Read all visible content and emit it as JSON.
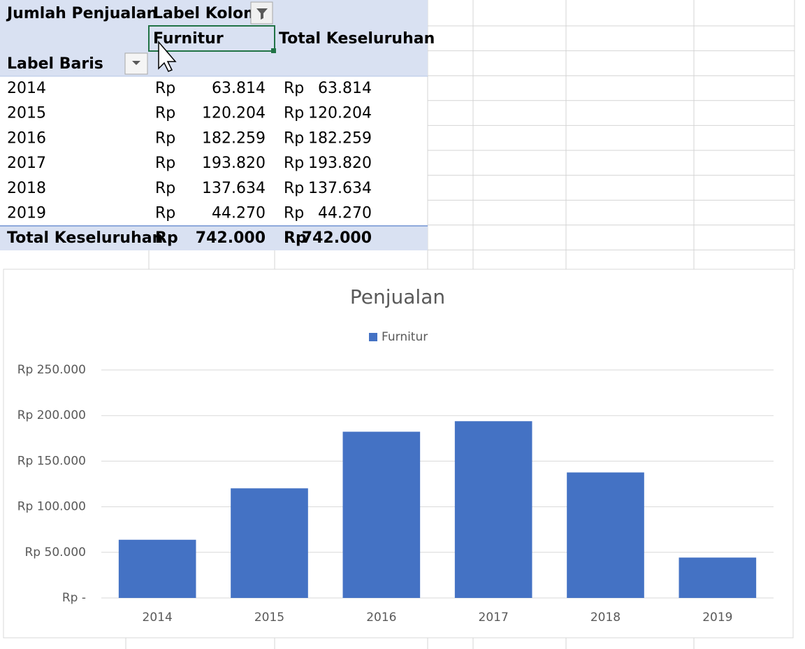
{
  "pivot": {
    "value_field": "Jumlah Penjualan",
    "column_label": "Label Kolom",
    "column_item": "Furnitur",
    "grand_total_header": "Total Keseluruhan",
    "row_label": "Label Baris",
    "rows": [
      [
        "2014",
        "Rp",
        "63.814",
        "Rp",
        "63.814"
      ],
      [
        "2015",
        "Rp",
        "120.204",
        "Rp",
        "120.204"
      ],
      [
        "2016",
        "Rp",
        "182.259",
        "Rp",
        "182.259"
      ],
      [
        "2017",
        "Rp",
        "193.820",
        "Rp",
        "193.820"
      ],
      [
        "2018",
        "Rp",
        "137.634",
        "Rp",
        "137.634"
      ],
      [
        "2019",
        "Rp",
        "44.270",
        "Rp",
        "44.270"
      ]
    ],
    "total_row": [
      "Total Keseluruhan",
      "Rp",
      "742.000",
      "Rp",
      "742.000"
    ]
  },
  "chart_data": {
    "type": "bar",
    "title": "Penjualan",
    "categories": [
      "2014",
      "2015",
      "2016",
      "2017",
      "2018",
      "2019"
    ],
    "series": [
      {
        "name": "Furnitur",
        "color": "#4472c4",
        "values": [
          63814,
          120204,
          182259,
          193820,
          137634,
          44270
        ]
      }
    ],
    "ylim": [
      0,
      250000
    ],
    "yticks": [
      {
        "value": 0,
        "label": "Rp -"
      },
      {
        "value": 50000,
        "label": "Rp 50.000"
      },
      {
        "value": 100000,
        "label": "Rp 100.000"
      },
      {
        "value": 150000,
        "label": "Rp 150.000"
      },
      {
        "value": 200000,
        "label": "Rp 200.000"
      },
      {
        "value": 250000,
        "label": "Rp 250.000"
      }
    ],
    "grid": true,
    "legend": "top"
  }
}
